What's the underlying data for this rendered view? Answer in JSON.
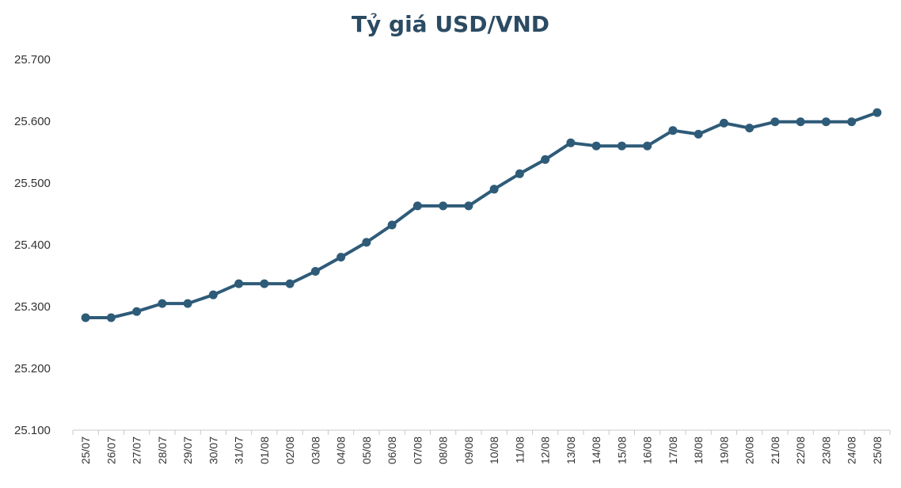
{
  "chart_data": {
    "type": "line",
    "title": "Tỷ giá USD/VND",
    "xlabel": "",
    "ylabel": "",
    "ylim": [
      25100,
      25700
    ],
    "yticks": [
      25100,
      25200,
      25300,
      25400,
      25500,
      25600,
      25700
    ],
    "ytick_labels": [
      "25.100",
      "25.200",
      "25.300",
      "25.400",
      "25.500",
      "25.600",
      "25.700"
    ],
    "categories": [
      "25/07",
      "26/07",
      "27/07",
      "28/07",
      "29/07",
      "30/07",
      "31/07",
      "01/08",
      "02/08",
      "03/08",
      "04/08",
      "05/08",
      "06/08",
      "07/08",
      "08/08",
      "09/08",
      "10/08",
      "11/08",
      "12/08",
      "13/08",
      "14/08",
      "15/08",
      "16/08",
      "17/08",
      "18/08",
      "19/08",
      "20/08",
      "21/08",
      "22/08",
      "23/08",
      "24/08",
      "25/08"
    ],
    "series": [
      {
        "values": [
          25282,
          25282,
          25292,
          25305,
          25305,
          25319,
          25337,
          25337,
          25337,
          25357,
          25380,
          25404,
          25432,
          25463,
          25463,
          25463,
          25490,
          25515,
          25538,
          25565,
          25560,
          25560,
          25560,
          25585,
          25579,
          25597,
          25589,
          25599,
          25599,
          25599,
          25599,
          25614
        ]
      }
    ],
    "grid": false,
    "legend": "none",
    "colors": {
      "line": "#2e5b78",
      "axis": "#c8c8c8",
      "text": "#333333",
      "title": "#2b4b63"
    }
  }
}
